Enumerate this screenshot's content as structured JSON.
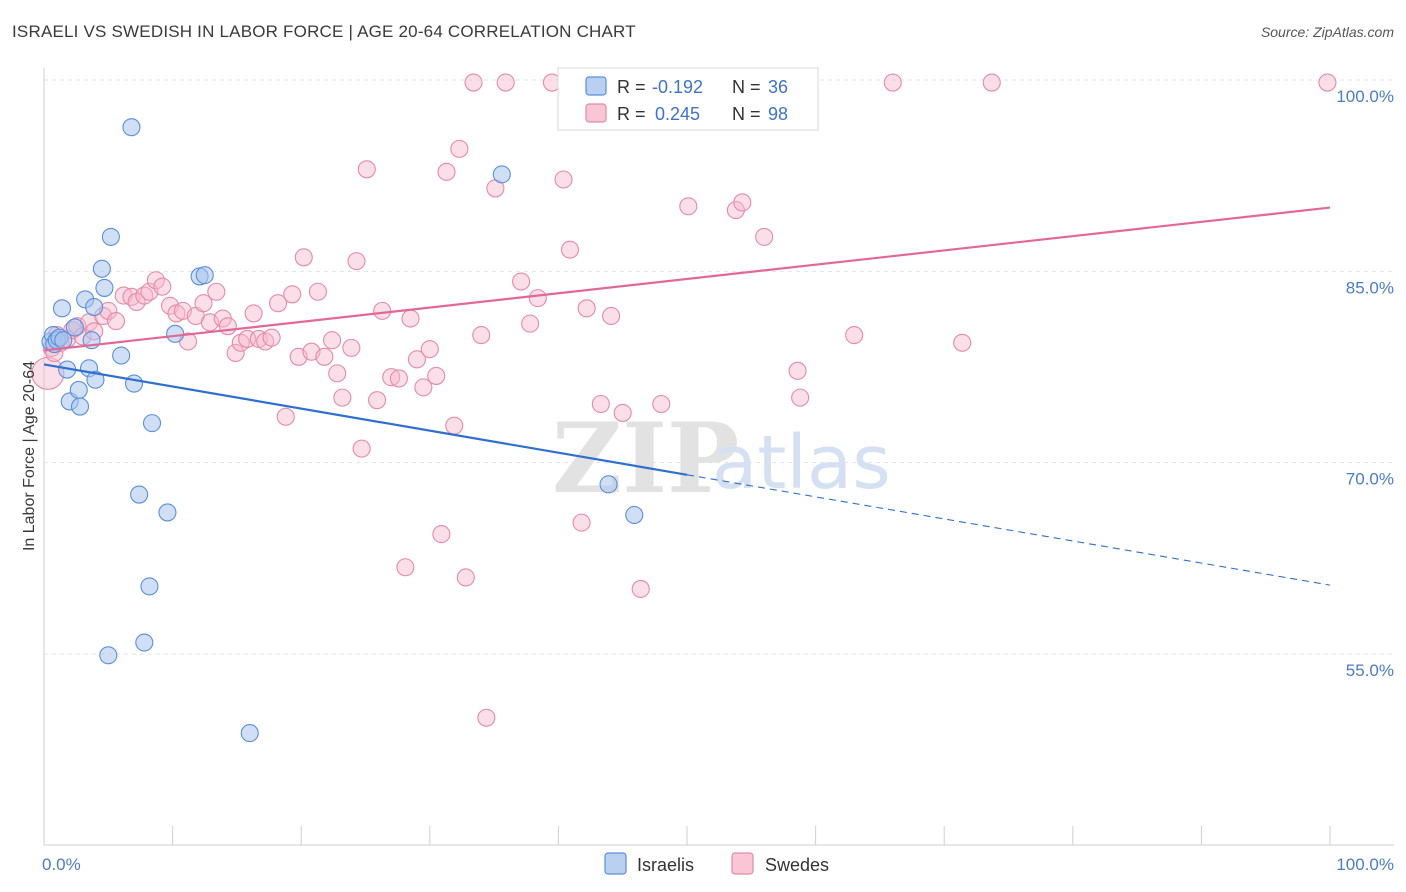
{
  "title": "ISRAELI VS SWEDISH IN LABOR FORCE | AGE 20-64 CORRELATION CHART",
  "source": "Source: ZipAtlas.com",
  "watermark": {
    "zip": "ZIP",
    "atlas": "atlas"
  },
  "colors": {
    "israelis_fill": "#a9c4ee",
    "israelis_stroke": "#5b8fd9",
    "israelis_line": "#2f6fcf",
    "swedes_fill": "#f6b8cb",
    "swedes_stroke": "#e58aa8",
    "swedes_line": "#e06996",
    "grid": "#e3e3e3",
    "tick_text": "#4a7cc7"
  },
  "chart_data": {
    "type": "scatter",
    "title": "ISRAELI VS SWEDISH IN LABOR FORCE | AGE 20-64 CORRELATION CHART",
    "xlabel": "",
    "ylabel": "In Labor Force | Age 20-64",
    "xlim": [
      0,
      100
    ],
    "ylim": [
      40,
      101
    ],
    "x_tick_labels": [
      "0.0%",
      "100.0%"
    ],
    "y_ticks": [
      55,
      70,
      85,
      100
    ],
    "y_tick_labels": [
      "55.0%",
      "70.0%",
      "85.0%",
      "100.0%"
    ],
    "grid": true,
    "legend_position": "top-center",
    "legend": [
      {
        "name": "Israelis",
        "r_label": "R =",
        "r_value": "-0.192",
        "n_label": "N =",
        "n_value": "36"
      },
      {
        "name": "Swedes",
        "r_label": "R =",
        "r_value": "0.245",
        "n_label": "N =",
        "n_value": "98"
      }
    ],
    "series": [
      {
        "name": "Israelis",
        "trend": {
          "x_start": 0,
          "y_start": 77.7,
          "x_solid_end": 50,
          "x_end": 100,
          "y_end": 60.4
        },
        "points": [
          [
            0.5,
            79.5
          ],
          [
            0.7,
            80.0
          ],
          [
            0.8,
            79.3
          ],
          [
            1.0,
            79.6
          ],
          [
            1.2,
            79.8
          ],
          [
            1.5,
            79.6
          ],
          [
            1.4,
            82.1
          ],
          [
            1.8,
            77.3
          ],
          [
            2.0,
            74.8
          ],
          [
            2.4,
            80.6
          ],
          [
            2.7,
            75.7
          ],
          [
            2.8,
            74.4
          ],
          [
            3.2,
            82.8
          ],
          [
            3.5,
            77.4
          ],
          [
            3.7,
            79.6
          ],
          [
            3.9,
            82.2
          ],
          [
            4.0,
            76.5
          ],
          [
            4.5,
            85.2
          ],
          [
            4.7,
            83.7
          ],
          [
            5.0,
            54.9
          ],
          [
            5.2,
            87.7
          ],
          [
            6.0,
            78.4
          ],
          [
            6.8,
            96.3
          ],
          [
            7.0,
            76.2
          ],
          [
            7.4,
            67.5
          ],
          [
            7.8,
            55.9
          ],
          [
            8.2,
            60.3
          ],
          [
            8.4,
            73.1
          ],
          [
            9.6,
            66.1
          ],
          [
            10.2,
            80.1
          ],
          [
            12.1,
            84.6
          ],
          [
            12.5,
            84.7
          ],
          [
            16.0,
            48.8
          ],
          [
            35.6,
            92.6
          ],
          [
            43.9,
            68.3
          ],
          [
            45.9,
            65.9
          ]
        ]
      },
      {
        "name": "Swedes",
        "trend": {
          "x_start": 0,
          "y_start": 78.8,
          "x_end": 100,
          "y_end": 90.0
        },
        "points": [
          [
            0.3,
            77.0
          ],
          [
            0.6,
            79.0
          ],
          [
            0.8,
            78.6
          ],
          [
            1.0,
            80.0
          ],
          [
            1.3,
            79.4
          ],
          [
            1.8,
            79.7
          ],
          [
            2.2,
            80.4
          ],
          [
            2.6,
            80.7
          ],
          [
            3.0,
            79.9
          ],
          [
            3.5,
            81.0
          ],
          [
            3.9,
            80.3
          ],
          [
            4.6,
            81.5
          ],
          [
            5.0,
            81.9
          ],
          [
            5.6,
            81.1
          ],
          [
            6.2,
            83.1
          ],
          [
            6.8,
            83.0
          ],
          [
            7.2,
            82.6
          ],
          [
            7.8,
            83.1
          ],
          [
            8.2,
            83.4
          ],
          [
            8.7,
            84.3
          ],
          [
            9.2,
            83.8
          ],
          [
            9.8,
            82.3
          ],
          [
            10.3,
            81.7
          ],
          [
            10.8,
            81.9
          ],
          [
            11.2,
            79.5
          ],
          [
            11.8,
            81.5
          ],
          [
            12.4,
            82.5
          ],
          [
            12.9,
            81.0
          ],
          [
            13.4,
            83.4
          ],
          [
            13.9,
            81.3
          ],
          [
            14.3,
            80.7
          ],
          [
            14.9,
            78.6
          ],
          [
            15.3,
            79.4
          ],
          [
            15.8,
            79.7
          ],
          [
            16.3,
            81.7
          ],
          [
            16.7,
            79.7
          ],
          [
            17.2,
            79.5
          ],
          [
            17.7,
            79.8
          ],
          [
            18.2,
            82.5
          ],
          [
            18.8,
            73.6
          ],
          [
            19.3,
            83.2
          ],
          [
            19.8,
            78.3
          ],
          [
            20.2,
            86.1
          ],
          [
            20.8,
            78.7
          ],
          [
            21.3,
            83.4
          ],
          [
            21.8,
            78.3
          ],
          [
            22.4,
            79.6
          ],
          [
            22.8,
            77.0
          ],
          [
            23.2,
            75.1
          ],
          [
            23.9,
            79.0
          ],
          [
            24.3,
            85.8
          ],
          [
            24.7,
            71.1
          ],
          [
            25.1,
            93.0
          ],
          [
            25.9,
            74.9
          ],
          [
            26.3,
            81.9
          ],
          [
            27.0,
            76.7
          ],
          [
            27.6,
            76.6
          ],
          [
            28.1,
            61.8
          ],
          [
            28.5,
            81.3
          ],
          [
            29.0,
            78.1
          ],
          [
            29.5,
            75.9
          ],
          [
            30.0,
            78.9
          ],
          [
            30.5,
            76.8
          ],
          [
            30.9,
            64.4
          ],
          [
            31.3,
            92.8
          ],
          [
            31.9,
            72.9
          ],
          [
            32.3,
            94.6
          ],
          [
            32.8,
            61.0
          ],
          [
            33.4,
            99.8
          ],
          [
            34.0,
            80.0
          ],
          [
            34.4,
            50.0
          ],
          [
            35.1,
            91.5
          ],
          [
            35.9,
            99.8
          ],
          [
            37.1,
            84.2
          ],
          [
            37.8,
            80.9
          ],
          [
            38.4,
            82.9
          ],
          [
            39.5,
            99.8
          ],
          [
            40.4,
            92.2
          ],
          [
            40.9,
            86.7
          ],
          [
            41.8,
            65.3
          ],
          [
            42.2,
            82.1
          ],
          [
            43.3,
            74.6
          ],
          [
            44.1,
            81.5
          ],
          [
            45.0,
            73.9
          ],
          [
            46.4,
            60.1
          ],
          [
            48.0,
            74.6
          ],
          [
            50.1,
            90.1
          ],
          [
            53.8,
            89.8
          ],
          [
            54.3,
            90.4
          ],
          [
            56.0,
            87.7
          ],
          [
            56.3,
            99.8
          ],
          [
            58.6,
            77.2
          ],
          [
            58.8,
            75.1
          ],
          [
            63.0,
            80.0
          ],
          [
            66.0,
            99.8
          ],
          [
            71.4,
            79.4
          ],
          [
            73.7,
            99.8
          ],
          [
            99.8,
            99.8
          ]
        ]
      }
    ]
  }
}
